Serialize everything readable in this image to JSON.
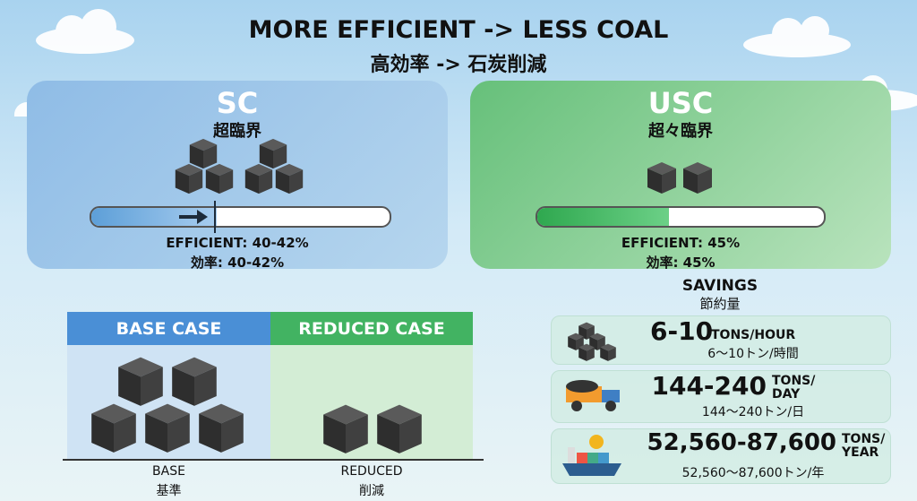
{
  "header": {
    "title": "MORE EFFICIENT -> LESS COAL",
    "subtitle": "高効率 -> 石炭削減"
  },
  "panels": [
    {
      "title": "SC",
      "subtitle": "超臨界",
      "efficiency_en": "EFFICIENT: 40-42%",
      "efficiency_ja": "効率: 40-42%"
    },
    {
      "title": "USC",
      "subtitle": "超々臨界",
      "efficiency_en": "EFFICIENT: 45%",
      "efficiency_ja": "効率: 45%"
    }
  ],
  "comparison": {
    "base": {
      "header": "BASE CASE",
      "label_en": "BASE",
      "label_ja": "基準"
    },
    "reduced": {
      "header": "REDUCED CASE",
      "label_en": "REDUCED",
      "label_ja": "削減"
    }
  },
  "savings": {
    "title": "SAVINGS",
    "subtitle": "節約量",
    "rows": [
      {
        "value": "6-10",
        "unit": [
          "TONS/HOUR"
        ],
        "ja": "6～10トン/時間"
      },
      {
        "value": "144-240",
        "unit": [
          "TONS/",
          "DAY"
        ],
        "ja": "144～240トン/日"
      },
      {
        "value": "52,560-87,600",
        "unit": [
          "TONS/",
          "YEAR"
        ],
        "ja": "52,560～87,600トン/年"
      }
    ]
  }
}
